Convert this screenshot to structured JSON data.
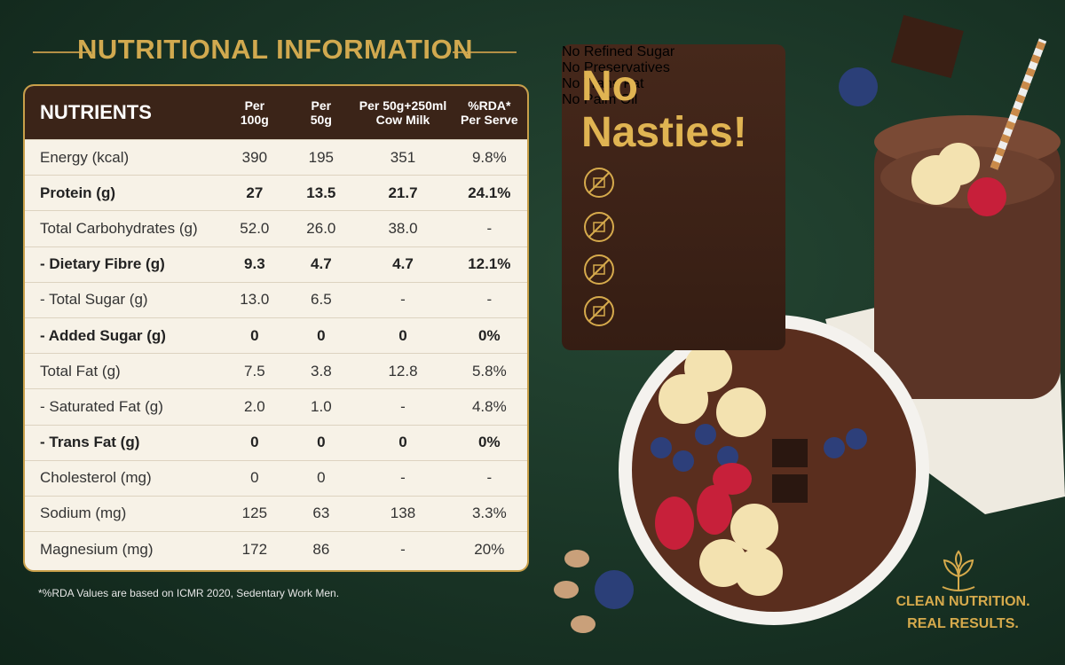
{
  "header": {
    "title": "NUTRITIONAL INFORMATION"
  },
  "table": {
    "headers": [
      "NUTRIENTS",
      "Per\n100g",
      "Per\n50g",
      "Per 50g+250ml\nCow Milk",
      "%RDA*\nPer Serve"
    ],
    "rows": [
      [
        "Energy (kcal)",
        "390",
        "195",
        "351",
        "9.8%"
      ],
      [
        "Protein (g)",
        "27",
        "13.5",
        "21.7",
        "24.1%"
      ],
      [
        "Total Carbohydrates (g)",
        "52.0",
        "26.0",
        "38.0",
        "-"
      ],
      [
        "- Dietary Fibre (g)",
        "9.3",
        "4.7",
        "4.7",
        "12.1%"
      ],
      [
        "- Total Sugar (g)",
        "13.0",
        "6.5",
        "-",
        "-"
      ],
      [
        "- Added Sugar (g)",
        "0",
        "0",
        "0",
        "0%"
      ],
      [
        "Total Fat (g)",
        "7.5",
        "3.8",
        "12.8",
        "5.8%"
      ],
      [
        "- Saturated Fat (g)",
        "2.0",
        "1.0",
        "-",
        "4.8%"
      ],
      [
        "- Trans Fat (g)",
        "0",
        "0",
        "0",
        "0%"
      ],
      [
        "Cholesterol (mg)",
        "0",
        "0",
        "-",
        "-"
      ],
      [
        "Sodium (mg)",
        "125",
        "63",
        "138",
        "3.3%"
      ],
      [
        "Magnesium (mg)",
        "172",
        "86",
        "-",
        "20%"
      ]
    ],
    "footnote": "*%RDA Values are based on ICMR 2020, Sedentary Work Men."
  },
  "badge": {
    "title": "No\nNasties!",
    "items": [
      "No Refined Sugar",
      "No Preservatives",
      "No Trans Fat",
      "No Palm Oil"
    ]
  },
  "tagline": [
    "CLEAN NUTRITION.",
    "REAL RESULTS."
  ]
}
